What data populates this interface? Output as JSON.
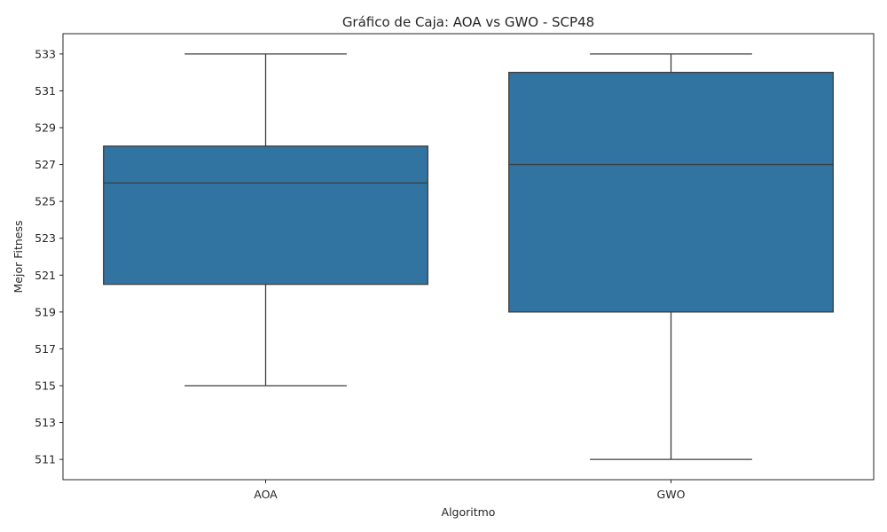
{
  "chart_data": {
    "type": "box",
    "title": "Gráfico de Caja: AOA vs GWO - SCP48",
    "xlabel": "Algoritmo",
    "ylabel": "Mejor Fitness",
    "ylim": [
      509.9,
      534.1
    ],
    "yticks": [
      511,
      513,
      515,
      517,
      519,
      521,
      523,
      525,
      527,
      529,
      531,
      533
    ],
    "grid": false,
    "box_color": "#3274a1",
    "line_color": "#3d3d3d",
    "categories": [
      "AOA",
      "GWO"
    ],
    "boxes": [
      {
        "category": "AOA",
        "whisker_low": 515,
        "q1": 520.5,
        "median": 526,
        "q3": 528,
        "whisker_high": 533
      },
      {
        "category": "GWO",
        "whisker_low": 511,
        "q1": 519,
        "median": 527,
        "q3": 532,
        "whisker_high": 533
      }
    ]
  }
}
